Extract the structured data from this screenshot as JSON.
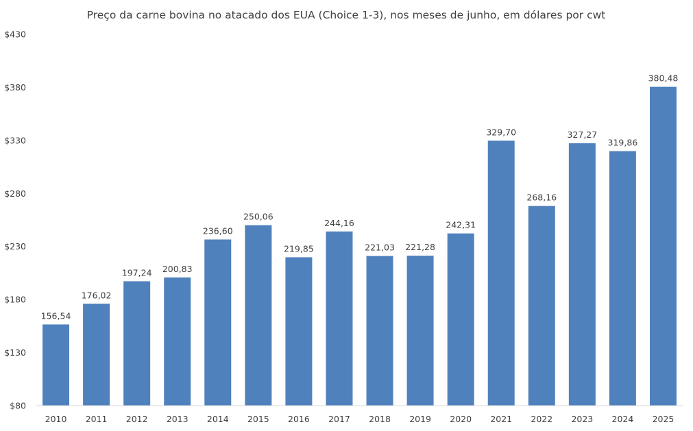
{
  "chart_data": {
    "type": "bar",
    "title": "Preço da carne bovina no atacado dos EUA (Choice 1-3), nos meses de junho, em dólares por cwt",
    "xlabel": "",
    "ylabel": "",
    "categories": [
      "2010",
      "2011",
      "2012",
      "2013",
      "2014",
      "2015",
      "2016",
      "2017",
      "2018",
      "2019",
      "2020",
      "2021",
      "2022",
      "2023",
      "2024",
      "2025"
    ],
    "values": [
      156.54,
      176.02,
      197.24,
      200.83,
      236.6,
      250.06,
      219.85,
      244.16,
      221.03,
      221.28,
      242.31,
      329.7,
      268.16,
      327.27,
      319.86,
      380.48
    ],
    "value_labels": [
      "156,54",
      "176,02",
      "197,24",
      "200,83",
      "236,60",
      "250,06",
      "219,85",
      "244,16",
      "221,03",
      "221,28",
      "242,31",
      "329,70",
      "268,16",
      "327,27",
      "319,86",
      "380,48"
    ],
    "ylim": [
      80,
      430
    ],
    "yticks": [
      80,
      130,
      180,
      230,
      280,
      330,
      380,
      430
    ],
    "ytick_labels": [
      "$80",
      "$130",
      "$180",
      "$230",
      "$280",
      "$330",
      "$380",
      "$430"
    ],
    "grid": false,
    "legend": "none",
    "bar_color": "#4f81bd",
    "axis_color": "#d9d9d9"
  }
}
